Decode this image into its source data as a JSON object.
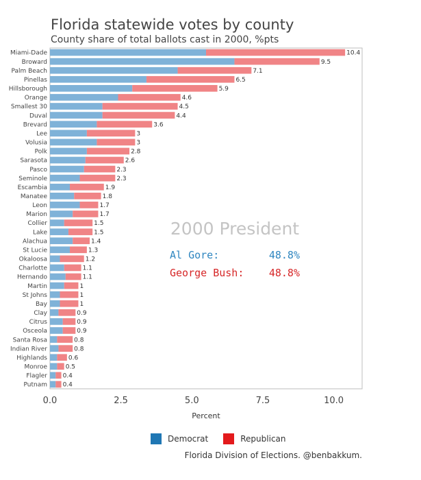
{
  "header": {
    "title": "Florida statewide votes by county",
    "subtitle": "County share of total ballots cast in 2000, %pts"
  },
  "overlay": {
    "title": "2000 President",
    "dem_name": "Al Gore:",
    "dem_value": "48.8%",
    "rep_name": "George Bush:",
    "rep_value": "48.8%"
  },
  "legend": {
    "dem_label": "Democrat",
    "rep_label": "Republican"
  },
  "source": "Florida Division of Elections. @benbakkum.",
  "colors": {
    "dem_bar": "#7fb2d8",
    "rep_bar": "#f08486",
    "dem_legend": "#1f77b4",
    "rep_legend": "#e31a1c",
    "dem_text": "#2f86c0",
    "rep_text": "#d62728"
  },
  "chart_data": {
    "type": "bar",
    "orientation": "horizontal",
    "stacked": true,
    "categories": [
      "Miami-Dade",
      "Broward",
      "Palm Beach",
      "Pinellas",
      "Hillsborough",
      "Orange",
      "Smallest 30",
      "Duval",
      "Brevard",
      "Lee",
      "Volusia",
      "Polk",
      "Sarasota",
      "Pasco",
      "Seminole",
      "Escambia",
      "Manatee",
      "Leon",
      "Marion",
      "Collier",
      "Lake",
      "Alachua",
      "St Lucie",
      "Okaloosa",
      "Charlotte",
      "Hernando",
      "Martin",
      "St Johns",
      "Bay",
      "Clay",
      "Citrus",
      "Osceola",
      "Santa Rosa",
      "Indian River",
      "Highlands",
      "Monroe",
      "Flagler",
      "Putnam"
    ],
    "series": [
      {
        "name": "Democrat",
        "values": [
          5.5,
          6.5,
          4.5,
          3.4,
          2.9,
          2.4,
          1.85,
          1.85,
          1.65,
          1.3,
          1.65,
          1.3,
          1.25,
          1.2,
          1.05,
          0.7,
          0.85,
          1.05,
          0.8,
          0.5,
          0.65,
          0.8,
          0.7,
          0.35,
          0.5,
          0.55,
          0.5,
          0.35,
          0.35,
          0.3,
          0.45,
          0.45,
          0.25,
          0.3,
          0.25,
          0.25,
          0.2,
          0.2
        ]
      },
      {
        "name": "Republican",
        "values": [
          4.9,
          3.0,
          2.6,
          3.1,
          3.0,
          2.2,
          2.65,
          2.55,
          1.95,
          1.7,
          1.35,
          1.5,
          1.35,
          1.1,
          1.25,
          1.2,
          0.95,
          0.65,
          0.9,
          1.0,
          0.85,
          0.6,
          0.6,
          0.85,
          0.6,
          0.55,
          0.5,
          0.65,
          0.65,
          0.6,
          0.45,
          0.45,
          0.55,
          0.5,
          0.35,
          0.25,
          0.2,
          0.2
        ]
      }
    ],
    "totals": [
      "10.4",
      "9.5",
      "7.1",
      "6.5",
      "5.9",
      "4.6",
      "4.5",
      "4.4",
      "3.6",
      "3",
      "3",
      "2.8",
      "2.6",
      "2.3",
      "2.3",
      "1.9",
      "1.8",
      "1.7",
      "1.7",
      "1.5",
      "1.5",
      "1.4",
      "1.3",
      "1.2",
      "1.1",
      "1.1",
      "1",
      "1",
      "1",
      "0.9",
      "0.9",
      "0.9",
      "0.8",
      "0.8",
      "0.6",
      "0.5",
      "0.4",
      "0.4"
    ],
    "xlabel": "Percent",
    "xlim": [
      0,
      11
    ],
    "xticks": [
      "0.0",
      "2.5",
      "5.0",
      "7.5",
      "10.0"
    ],
    "grid": false,
    "legend_position": "bottom"
  }
}
